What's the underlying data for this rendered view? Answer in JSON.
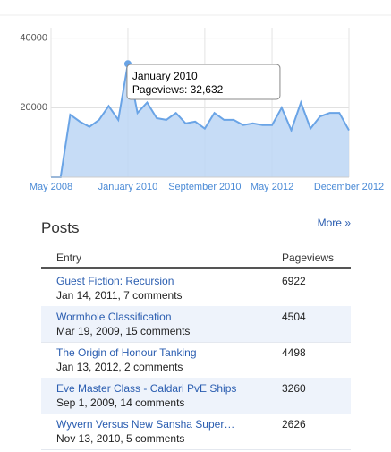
{
  "chart_data": {
    "type": "area",
    "categories": [
      "May 2008",
      null,
      null,
      null,
      null,
      null,
      null,
      null,
      "January 2010",
      null,
      null,
      null,
      null,
      null,
      null,
      null,
      "September 2010",
      null,
      null,
      null,
      null,
      null,
      null,
      "May 2012",
      null,
      null,
      null,
      null,
      null,
      null,
      null,
      "December 2012"
    ],
    "series": [
      {
        "name": "Pageviews",
        "color": "#6aa4e6",
        "values": [
          0,
          0,
          18000,
          16000,
          14500,
          16500,
          20500,
          16500,
          32632,
          18500,
          21500,
          17000,
          16500,
          18500,
          15500,
          16000,
          14000,
          18500,
          16500,
          16500,
          15000,
          15500,
          15000,
          15000,
          20000,
          13500,
          21500,
          14000,
          17500,
          18500,
          18500,
          13500
        ]
      }
    ],
    "ylim": [
      0,
      43000
    ],
    "yticks": [
      20000,
      40000
    ],
    "grid": true,
    "annotation": {
      "title": "January 2010",
      "text": "Pageviews: 32,632"
    }
  },
  "posts": {
    "title": "Posts",
    "more": "More »",
    "columns": [
      "Entry",
      "Pageviews"
    ],
    "rows": [
      {
        "title": "Guest Fiction: Recursion",
        "meta": "Jan 14, 2011, 7 comments",
        "pageviews": 6922
      },
      {
        "title": "Wormhole Classification",
        "meta": "Mar 19, 2009, 15 comments",
        "pageviews": 4504
      },
      {
        "title": "The Origin of Honour Tanking",
        "meta": "Jan 13, 2012, 2 comments",
        "pageviews": 4498
      },
      {
        "title": "Eve Master Class - Caldari PvE Ships",
        "meta": "Sep 1, 2009, 14 comments",
        "pageviews": 3260
      },
      {
        "title": "Wyvern Versus New Sansha Super…",
        "meta": "Nov 13, 2010, 5 comments",
        "pageviews": 2626
      }
    ]
  }
}
